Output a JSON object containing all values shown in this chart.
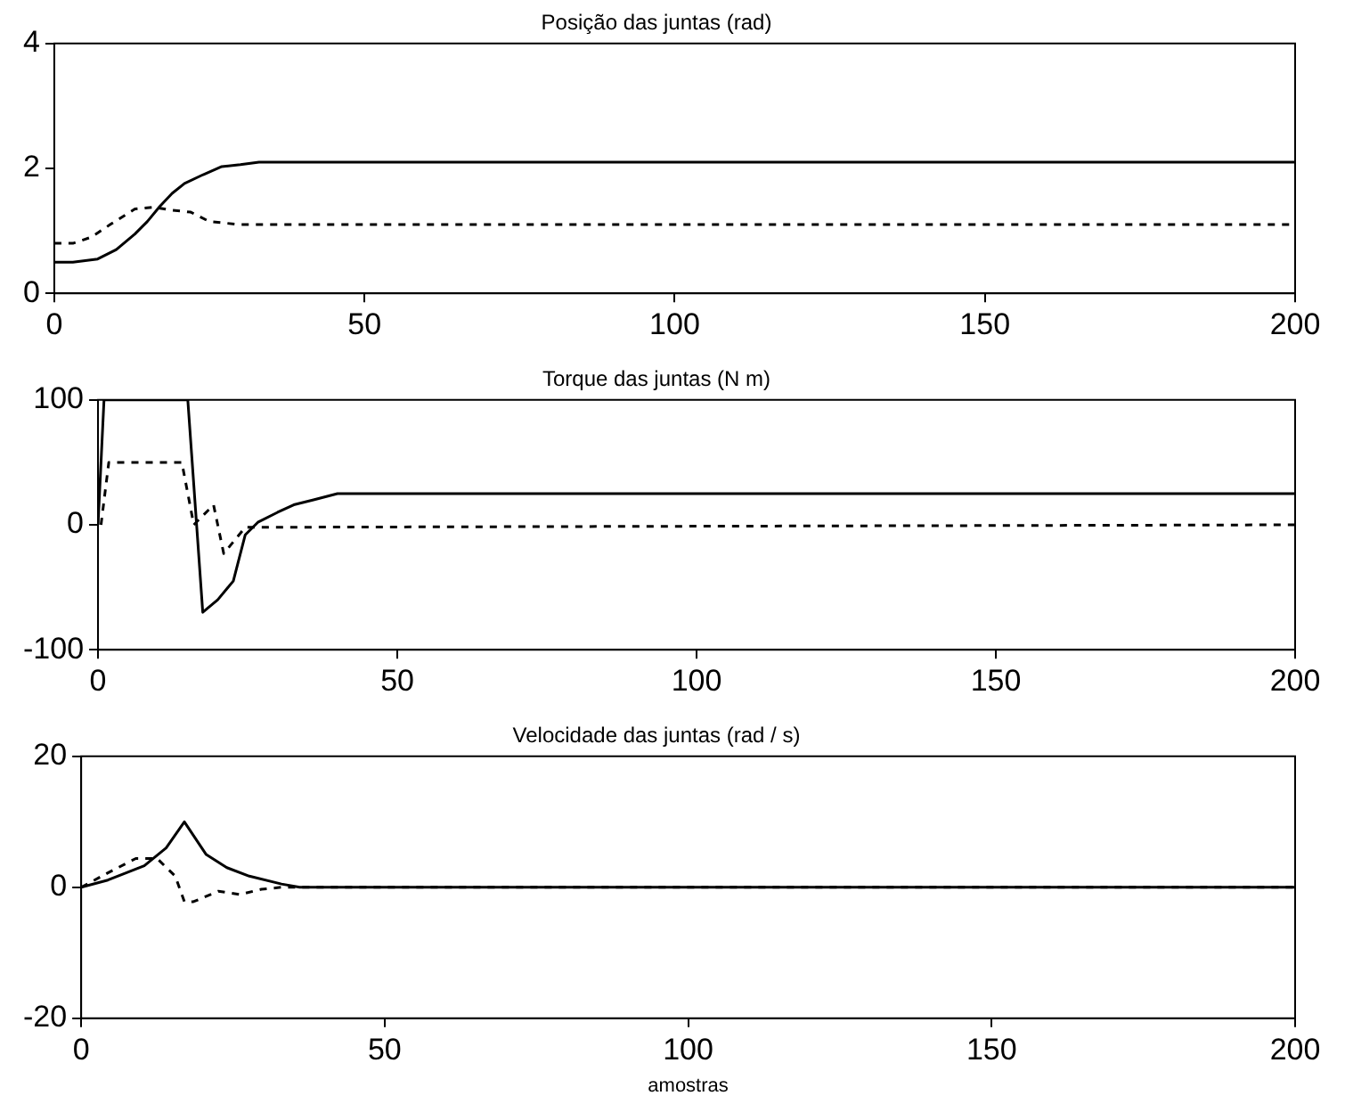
{
  "chart_data": [
    {
      "type": "line",
      "title": "Posição das juntas (rad)",
      "xlim": [
        0,
        200
      ],
      "xticks": [
        0,
        50,
        100,
        150,
        200
      ],
      "ylim": [
        0,
        4
      ],
      "yticks": [
        0,
        2,
        4
      ],
      "grid": false,
      "legend": false,
      "marker": "none",
      "series": [
        {
          "color": "#000000",
          "line_style": "solid",
          "x": [
            0,
            3,
            7,
            10,
            13,
            15,
            17,
            19,
            21,
            24,
            27,
            30,
            33,
            200
          ],
          "values": [
            0.5,
            0.5,
            0.55,
            0.7,
            0.95,
            1.15,
            1.39,
            1.6,
            1.76,
            1.9,
            2.03,
            2.06,
            2.1,
            2.1
          ]
        },
        {
          "color": "#000000",
          "line_style": "dashed",
          "x": [
            0,
            3,
            6,
            9,
            13,
            16,
            19,
            22,
            25,
            30,
            200
          ],
          "values": [
            0.8,
            0.8,
            0.9,
            1.1,
            1.35,
            1.38,
            1.33,
            1.3,
            1.15,
            1.1,
            1.1
          ]
        }
      ]
    },
    {
      "type": "line",
      "title": "Torque das juntas (N m)",
      "xlim": [
        0,
        200
      ],
      "xticks": [
        0,
        50,
        100,
        150,
        200
      ],
      "ylim": [
        -100,
        100
      ],
      "yticks": [
        -100,
        0,
        100
      ],
      "grid": false,
      "legend": false,
      "marker": "none",
      "series": [
        {
          "color": "#000000",
          "line_style": "solid",
          "x": [
            0,
            1,
            15,
            17.5,
            20,
            22.6,
            24.6,
            26.7,
            30,
            32.7,
            36,
            40,
            200
          ],
          "values": [
            0,
            100,
            100,
            -70,
            -60,
            -45,
            -8,
            2,
            10,
            16,
            20,
            25,
            25
          ]
        },
        {
          "color": "#000000",
          "line_style": "dashed",
          "x": [
            0.5,
            1.8,
            14,
            16,
            19.3,
            21,
            24.6,
            200
          ],
          "values": [
            0,
            50,
            50,
            0,
            16,
            -23,
            -2,
            0
          ]
        }
      ]
    },
    {
      "type": "line",
      "title": "Velocidade das juntas (rad / s)",
      "xlabel": "amostras",
      "xlim": [
        0,
        200
      ],
      "xticks": [
        0,
        50,
        100,
        150,
        200
      ],
      "ylim": [
        -20,
        20
      ],
      "yticks": [
        -20,
        0,
        20
      ],
      "grid": false,
      "legend": false,
      "marker": "none",
      "series": [
        {
          "color": "#000000",
          "line_style": "solid",
          "x": [
            0,
            4.4,
            10.4,
            14,
            17,
            20.6,
            24,
            27.7,
            33,
            36,
            200
          ],
          "values": [
            0,
            1.1,
            3.3,
            6,
            10,
            5,
            3,
            1.7,
            0.5,
            0,
            0
          ]
        },
        {
          "color": "#000000",
          "line_style": "dashed",
          "x": [
            0,
            4.4,
            9,
            12.5,
            15.5,
            17,
            18.5,
            22.6,
            26.2,
            29.7,
            33,
            200
          ],
          "values": [
            0,
            2.2,
            4.4,
            4.4,
            1.7,
            -2.2,
            -2.2,
            -0.6,
            -1.1,
            -0.3,
            0,
            0
          ]
        }
      ]
    }
  ]
}
